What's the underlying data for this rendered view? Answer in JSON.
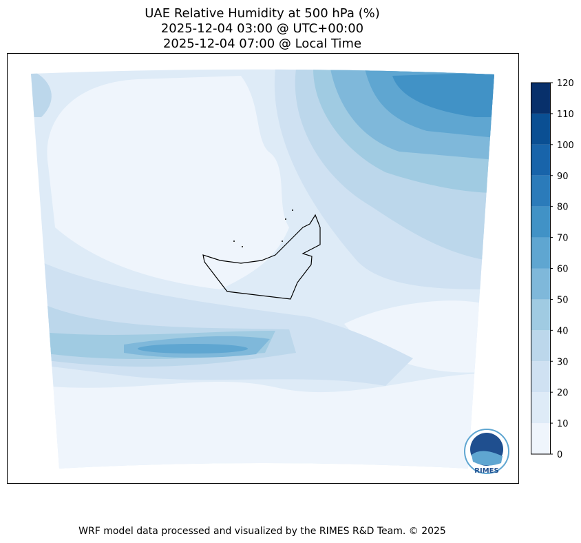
{
  "title": [
    "UAE Relative Humidity at 500 hPa (%)",
    "2025-12-04 03:00 @ UTC+00:00",
    "2025-12-04 07:00 @ Local Time"
  ],
  "colorbar": {
    "levels": [
      0,
      10,
      20,
      30,
      40,
      50,
      60,
      70,
      80,
      90,
      100,
      110,
      120
    ],
    "colors": [
      "#eff5fc",
      "#deebf7",
      "#cfe1f2",
      "#bcd7eb",
      "#a0cbe2",
      "#7fb8da",
      "#5fa6d1",
      "#4192c6",
      "#2b7bba",
      "#1864aa",
      "#0a4f93",
      "#08306b"
    ],
    "ticks": [
      0,
      10,
      20,
      30,
      40,
      50,
      60,
      70,
      80,
      90,
      100,
      110,
      120
    ]
  },
  "logo": "RIMES",
  "footer": "WRF model data processed and visualized by the RIMES R&D Team. © 2025"
}
